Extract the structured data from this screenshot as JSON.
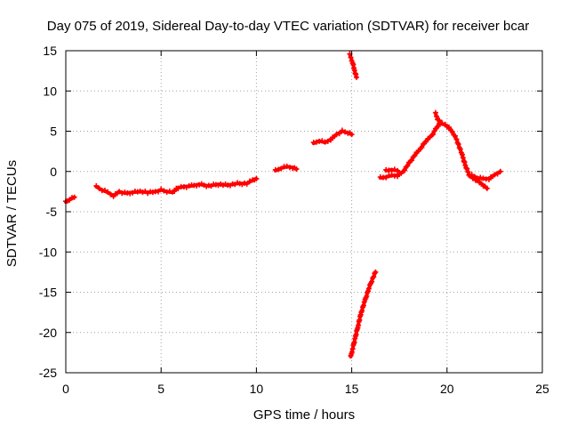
{
  "chart_data": {
    "type": "scatter",
    "title": "Day 075 of 2019, Sidereal Day-to-day VTEC variation (SDTVAR) for receiver bcar",
    "xlabel": "GPS time / hours",
    "ylabel": "SDTVAR / TECUs",
    "xlim": [
      0,
      25
    ],
    "ylim": [
      -25,
      15
    ],
    "xticks": [
      0,
      5,
      10,
      15,
      20,
      25
    ],
    "yticks": [
      -25,
      -20,
      -15,
      -10,
      -5,
      0,
      5,
      10,
      15
    ],
    "grid": true,
    "marker": "plus",
    "color": "#ff0000",
    "series": [
      {
        "x": [
          0.0,
          0.2,
          0.45
        ],
        "y": [
          -3.8,
          -3.5,
          -3.2
        ]
      },
      {
        "x": [
          1.6,
          1.9,
          2.2,
          2.5,
          2.8,
          3.1,
          3.5,
          3.9,
          4.3,
          4.7,
          5.0,
          5.3,
          5.6,
          5.9,
          6.2,
          6.6,
          7.0,
          7.5,
          8.0,
          8.5,
          9.0,
          9.5,
          9.8,
          10.0
        ],
        "y": [
          -1.9,
          -2.3,
          -2.6,
          -3.0,
          -2.5,
          -2.7,
          -2.6,
          -2.5,
          -2.6,
          -2.5,
          -2.3,
          -2.5,
          -2.6,
          -2.0,
          -1.9,
          -1.8,
          -1.6,
          -1.8,
          -1.6,
          -1.7,
          -1.5,
          -1.5,
          -1.1,
          -0.9
        ]
      },
      {
        "x": [
          11.0,
          11.3,
          11.6,
          11.9,
          12.1
        ],
        "y": [
          0.1,
          0.4,
          0.6,
          0.5,
          0.3
        ]
      },
      {
        "x": [
          13.0,
          13.3,
          13.6,
          13.9,
          14.2,
          14.5,
          14.8,
          15.0
        ],
        "y": [
          3.5,
          3.8,
          3.6,
          4.0,
          4.6,
          5.0,
          4.8,
          4.6
        ]
      },
      {
        "x": [
          14.9,
          15.05,
          15.15,
          15.25
        ],
        "y": [
          14.5,
          13.5,
          12.5,
          11.7
        ]
      },
      {
        "x": [
          14.95,
          15.05,
          15.2,
          15.35,
          15.5,
          15.7,
          15.9,
          16.1,
          16.25
        ],
        "y": [
          -23.0,
          -22.0,
          -20.5,
          -19.0,
          -17.5,
          -16.0,
          -14.5,
          -13.3,
          -12.5
        ]
      },
      {
        "x": [
          16.5,
          16.8,
          17.1,
          17.4,
          17.7,
          18.0,
          18.3,
          18.6,
          18.9,
          19.2,
          19.4,
          19.6,
          19.9,
          20.2,
          20.5,
          20.8,
          21.0,
          21.2,
          21.5,
          21.8,
          22.1
        ],
        "y": [
          -0.8,
          -0.7,
          -0.5,
          -0.5,
          0.0,
          1.0,
          2.0,
          2.8,
          3.8,
          4.5,
          5.2,
          6.0,
          5.8,
          5.2,
          4.0,
          2.0,
          0.5,
          -0.6,
          -1.0,
          -1.5,
          -2.1
        ]
      },
      {
        "x": [
          16.8,
          17.1,
          17.4
        ],
        "y": [
          0.1,
          0.2,
          0.1
        ]
      },
      {
        "x": [
          19.4,
          19.5,
          19.7
        ],
        "y": [
          7.2,
          6.5,
          6.0
        ]
      },
      {
        "x": [
          21.3,
          21.6,
          21.9,
          22.2,
          22.5,
          22.8
        ],
        "y": [
          -0.5,
          -0.8,
          -0.9,
          -0.9,
          -0.4,
          0.0
        ]
      }
    ]
  }
}
